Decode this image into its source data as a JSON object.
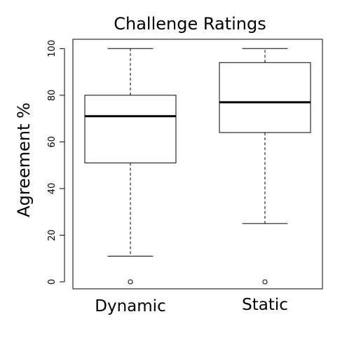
{
  "chart_data": {
    "type": "box",
    "title": "Challenge Ratings",
    "xlabel": "",
    "ylabel": "Agreement %",
    "ylim": [
      -3,
      104
    ],
    "yticks": [
      0,
      20,
      40,
      60,
      80,
      100
    ],
    "grid": false,
    "categories": [
      "Dynamic",
      "Static"
    ],
    "series": [
      {
        "category": "Dynamic",
        "whisker_low": 11,
        "q1": 51,
        "median": 71,
        "q3": 80,
        "whisker_high": 100,
        "outliers": [
          0
        ]
      },
      {
        "category": "Static",
        "whisker_low": 25,
        "q1": 64,
        "median": 77,
        "q3": 94,
        "whisker_high": 100,
        "outliers": [
          0
        ]
      }
    ]
  }
}
